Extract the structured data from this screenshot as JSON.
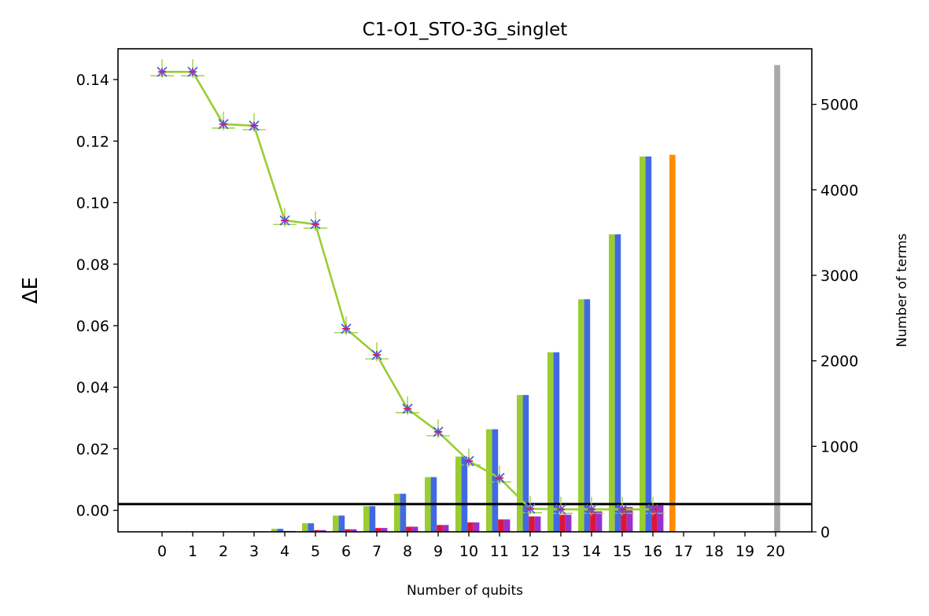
{
  "chart_data": {
    "type": "bar",
    "title": "C1-O1_STO-3G_singlet",
    "xlabel": "Number of qubits",
    "ylabel_left": "ΔE",
    "ylabel_right": "Number of terms",
    "x_ticks": [
      "0",
      "1",
      "2",
      "3",
      "4",
      "5",
      "6",
      "7",
      "8",
      "9",
      "10",
      "11",
      "12",
      "13",
      "14",
      "15",
      "16",
      "17",
      "18",
      "19",
      "20"
    ],
    "left_axis": {
      "ylim": [
        -0.007,
        0.15
      ],
      "ticks": [
        "0.00",
        "0.02",
        "0.04",
        "0.06",
        "0.08",
        "0.10",
        "0.12",
        "0.14"
      ]
    },
    "right_axis": {
      "ylim": [
        0,
        5650
      ],
      "ticks": [
        "0",
        "1000",
        "2000",
        "3000",
        "4000",
        "5000"
      ]
    },
    "grid": false,
    "reference_line": {
      "axis": "left",
      "value": 0.002,
      "color": "#000000"
    },
    "delta_e_series": {
      "axis": "left",
      "color": "#9acd32",
      "marker_colors": [
        "#9acd32",
        "#4169e1",
        "#dc143c",
        "#9932cc"
      ],
      "qubits": [
        0,
        1,
        2,
        3,
        4,
        5,
        6,
        7,
        8,
        9,
        10,
        11,
        12,
        13,
        14,
        15,
        16
      ],
      "values": [
        0.1425,
        0.1425,
        0.1255,
        0.125,
        0.0942,
        0.093,
        0.059,
        0.0505,
        0.033,
        0.0255,
        0.016,
        0.0105,
        0.0005,
        0.0003,
        0.0003,
        0.0003,
        0.0003
      ]
    },
    "bar_series": [
      {
        "color": "#9acd32",
        "axis": "right",
        "qubits": [
          0,
          1,
          2,
          3,
          4,
          5,
          6,
          7,
          8,
          9,
          10,
          11,
          12,
          13,
          14,
          15,
          16
        ],
        "values": [
          0,
          0,
          0,
          0,
          35,
          100,
          190,
          300,
          445,
          640,
          880,
          1200,
          1600,
          2100,
          2720,
          3480,
          4390
        ]
      },
      {
        "color": "#4169e1",
        "axis": "right",
        "qubits": [
          0,
          1,
          2,
          3,
          4,
          5,
          6,
          7,
          8,
          9,
          10,
          11,
          12,
          13,
          14,
          15,
          16
        ],
        "values": [
          0,
          0,
          0,
          0,
          35,
          100,
          190,
          300,
          445,
          640,
          880,
          1200,
          1600,
          2100,
          2720,
          3480,
          4390
        ]
      },
      {
        "color": "#dc143c",
        "axis": "right",
        "qubits": [
          0,
          1,
          2,
          3,
          4,
          5,
          6,
          7,
          8,
          9,
          10,
          11,
          12,
          13,
          14,
          15,
          16
        ],
        "values": [
          0,
          0,
          0,
          5,
          10,
          20,
          30,
          45,
          60,
          80,
          110,
          145,
          180,
          200,
          240,
          290,
          340
        ]
      },
      {
        "color": "#9932cc",
        "axis": "right",
        "qubits": [
          0,
          1,
          2,
          3,
          4,
          5,
          6,
          7,
          8,
          9,
          10,
          11,
          12,
          13,
          14,
          15,
          16
        ],
        "values": [
          0,
          0,
          0,
          5,
          10,
          20,
          30,
          45,
          60,
          80,
          110,
          145,
          180,
          200,
          240,
          290,
          340
        ]
      },
      {
        "color": "#ff8c00",
        "axis": "right",
        "qubits": [
          16
        ],
        "values": [
          4410
        ]
      },
      {
        "color": "#a9a9a9",
        "axis": "right",
        "qubits": [
          20
        ],
        "values": [
          5460
        ]
      }
    ]
  }
}
